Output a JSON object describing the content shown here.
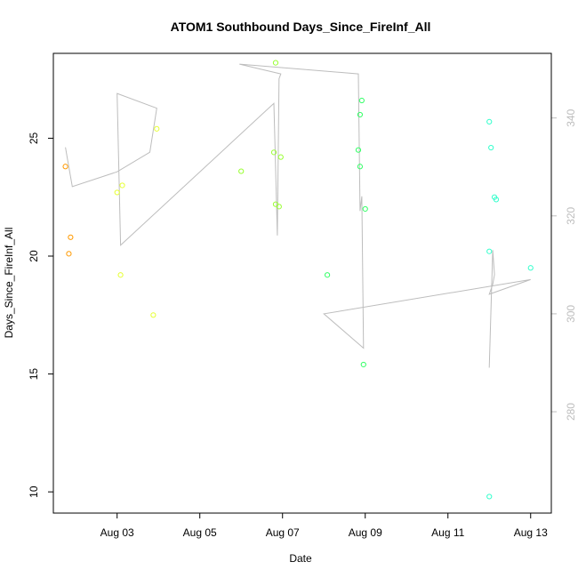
{
  "chart_data": {
    "type": "scatter",
    "title": "ATOM1 Southbound Days_Since_FireInf_All",
    "xlabel": "Date",
    "ylabel": "Days_Since_FireInf_All",
    "x_ticks": [
      "Aug 03",
      "Aug 05",
      "Aug 07",
      "Aug 09",
      "Aug 11",
      "Aug 13"
    ],
    "y_ticks": [
      "10",
      "15",
      "20",
      "25"
    ],
    "y2_ticks": [
      "280",
      "300",
      "320",
      "340"
    ],
    "ylim": [
      9.1,
      28.6
    ],
    "y2lim": [
      259.3,
      353.2
    ],
    "y2_color": "#bdbdbd",
    "grid": false,
    "legend": "none",
    "points": [
      {
        "x": "2023-08-01 18:00",
        "y": 23.8,
        "color": "#ff9900"
      },
      {
        "x": "2023-08-01 20:00",
        "y": 20.1,
        "color": "#ff9900"
      },
      {
        "x": "2023-08-01 21:00",
        "y": 20.8,
        "color": "#ff9900"
      },
      {
        "x": "2023-08-03 00:00",
        "y": 22.7,
        "color": "#e6ff33"
      },
      {
        "x": "2023-08-03 02:00",
        "y": 19.2,
        "color": "#e6ff33"
      },
      {
        "x": "2023-08-03 03:00",
        "y": 23.0,
        "color": "#e6ff33"
      },
      {
        "x": "2023-08-03 21:00",
        "y": 17.5,
        "color": "#e6ff33"
      },
      {
        "x": "2023-08-03 23:00",
        "y": 25.4,
        "color": "#e6ff33"
      },
      {
        "x": "2023-08-06 00:00",
        "y": 23.6,
        "color": "#99ff33"
      },
      {
        "x": "2023-08-06 19:00",
        "y": 24.4,
        "color": "#99ff33"
      },
      {
        "x": "2023-08-06 20:00",
        "y": 28.2,
        "color": "#99ff33"
      },
      {
        "x": "2023-08-06 20:00",
        "y": 22.2,
        "color": "#99ff33"
      },
      {
        "x": "2023-08-06 22:00",
        "y": 22.1,
        "color": "#99ff33"
      },
      {
        "x": "2023-08-06 23:00",
        "y": 24.2,
        "color": "#99ff33"
      },
      {
        "x": "2023-08-08 02:00",
        "y": 19.2,
        "color": "#33ff66"
      },
      {
        "x": "2023-08-08 20:00",
        "y": 24.5,
        "color": "#33ff66"
      },
      {
        "x": "2023-08-08 21:00",
        "y": 26.0,
        "color": "#33ff66"
      },
      {
        "x": "2023-08-08 21:00",
        "y": 23.8,
        "color": "#33ff66"
      },
      {
        "x": "2023-08-08 22:00",
        "y": 26.6,
        "color": "#33ff66"
      },
      {
        "x": "2023-08-08 23:00",
        "y": 15.4,
        "color": "#33ff66"
      },
      {
        "x": "2023-08-09 00:00",
        "y": 22.0,
        "color": "#33ff66"
      },
      {
        "x": "2023-08-12 00:00",
        "y": 25.7,
        "color": "#33ffcc"
      },
      {
        "x": "2023-08-12 00:00",
        "y": 20.2,
        "color": "#33ffcc"
      },
      {
        "x": "2023-08-12 00:00",
        "y": 9.8,
        "color": "#33ffcc"
      },
      {
        "x": "2023-08-12 01:00",
        "y": 24.6,
        "color": "#33ffcc"
      },
      {
        "x": "2023-08-12 03:00",
        "y": 22.5,
        "color": "#33ffcc"
      },
      {
        "x": "2023-08-12 04:00",
        "y": 22.4,
        "color": "#33ffcc"
      },
      {
        "x": "2023-08-13 00:00",
        "y": 19.5,
        "color": "#33ffcc"
      }
    ],
    "line": {
      "color": "#bdbdbd",
      "points": [
        {
          "x": "2023-08-01 18:00",
          "y2": 334
        },
        {
          "x": "2023-08-01 20:00",
          "y2": 330
        },
        {
          "x": "2023-08-01 22:00",
          "y2": 326
        },
        {
          "x": "2023-08-03 00:00",
          "y2": 329
        },
        {
          "x": "2023-08-03 19:00",
          "y2": 333
        },
        {
          "x": "2023-08-03 23:00",
          "y2": 342
        },
        {
          "x": "2023-08-03 00:00",
          "y2": 345
        },
        {
          "x": "2023-08-03 02:00",
          "y2": 314
        },
        {
          "x": "2023-08-06 19:00",
          "y2": 343
        },
        {
          "x": "2023-08-06 21:00",
          "y2": 316
        },
        {
          "x": "2023-08-06 22:00",
          "y2": 348
        },
        {
          "x": "2023-08-06 23:00",
          "y2": 349
        },
        {
          "x": "2023-08-05 23:00",
          "y2": 351
        },
        {
          "x": "2023-08-08 20:00",
          "y2": 349
        },
        {
          "x": "2023-08-08 21:00",
          "y2": 321
        },
        {
          "x": "2023-08-08 22:00",
          "y2": 324
        },
        {
          "x": "2023-08-08 23:00",
          "y2": 293
        },
        {
          "x": "2023-08-08 00:00",
          "y2": 300
        },
        {
          "x": "2023-08-13 00:00",
          "y2": 307
        },
        {
          "x": "2023-08-12 00:00",
          "y2": 304
        },
        {
          "x": "2023-08-12 02:00",
          "y2": 306
        },
        {
          "x": "2023-08-12 03:00",
          "y2": 308
        },
        {
          "x": "2023-08-12 02:00",
          "y2": 313
        },
        {
          "x": "2023-08-12 00:00",
          "y2": 289
        }
      ]
    }
  }
}
